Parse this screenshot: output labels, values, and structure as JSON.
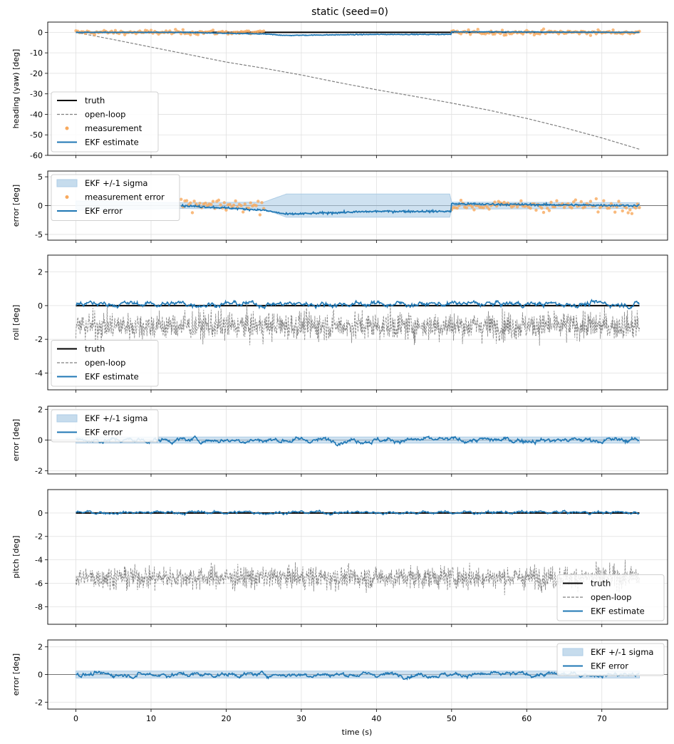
{
  "figure": {
    "title": "static (seed=0)",
    "xlabel": "time (s)"
  },
  "colors": {
    "truth": "#000000",
    "open_loop": "#808080",
    "measurement": "#f8a95d",
    "ekf": "#1f77b4",
    "sigma_fill": "#aecde6",
    "grid": "#e0e0e0"
  },
  "chart_data": [
    {
      "type": "line",
      "ylabel": "heading (yaw) [deg]",
      "xlim": [
        -3.75,
        78.75
      ],
      "ylim": [
        -60,
        5
      ],
      "yticks": [
        0,
        -10,
        -20,
        -30,
        -40,
        -50,
        -60
      ],
      "xticks": [
        0,
        10,
        20,
        30,
        40,
        50,
        60,
        70
      ],
      "grid": true,
      "legend": {
        "position": "lower-left",
        "entries": [
          "truth",
          "open-loop",
          "measurement",
          "EKF estimate"
        ]
      },
      "series": [
        {
          "name": "truth",
          "style": "solid-black",
          "x": [
            0,
            75
          ],
          "y": [
            0,
            0
          ]
        },
        {
          "name": "open-loop",
          "style": "dashed-gray",
          "x": [
            0,
            5,
            10,
            15,
            20,
            25,
            30,
            35,
            40,
            45,
            50,
            55,
            60,
            65,
            70,
            75
          ],
          "y": [
            0,
            -3.5,
            -7.2,
            -10.8,
            -14.5,
            -17.5,
            -20.8,
            -24.5,
            -28,
            -31.2,
            -34.5,
            -38,
            -42,
            -46.5,
            -51.5,
            -57
          ]
        },
        {
          "name": "measurement",
          "style": "scatter-orange",
          "x_range": [
            0,
            75
          ],
          "gaps": [
            [
              25,
              50
            ]
          ],
          "spread": 1.5,
          "center": 0
        },
        {
          "name": "EKF estimate",
          "style": "solid-blue",
          "x": [
            0,
            14,
            20,
            25,
            28,
            35,
            40,
            49.9,
            50,
            75
          ],
          "y": [
            0,
            0,
            -0.5,
            -0.8,
            -1.5,
            -1.2,
            -1.0,
            -1.0,
            0.3,
            0
          ]
        }
      ]
    },
    {
      "type": "line",
      "ylabel": "error [deg]",
      "xlim": [
        -3.75,
        78.75
      ],
      "ylim": [
        -6,
        6
      ],
      "yticks": [
        5,
        0,
        -5
      ],
      "xticks": [
        0,
        10,
        20,
        30,
        40,
        50,
        60,
        70
      ],
      "grid": true,
      "legend": {
        "position": "upper-left",
        "entries": [
          "EKF +/-1 sigma",
          "measurement error",
          "EKF error"
        ]
      },
      "series": [
        {
          "name": "EKF +/-1 sigma",
          "style": "band",
          "x": [
            0,
            14,
            25,
            28,
            49.9,
            50,
            75
          ],
          "y": [
            0.8,
            0.5,
            0.6,
            2.0,
            2.0,
            0.6,
            0.5
          ]
        },
        {
          "name": "measurement error",
          "style": "scatter-orange",
          "x_range": [
            14,
            75
          ],
          "gaps": [
            [
              25,
              50
            ]
          ],
          "spread": 1.3,
          "center": 0
        },
        {
          "name": "EKF error",
          "style": "solid-blue",
          "x": [
            14,
            20,
            25,
            28,
            35,
            40,
            49.9,
            50,
            75
          ],
          "y": [
            0,
            -0.4,
            -0.8,
            -1.5,
            -1.2,
            -1.0,
            -1.0,
            0.3,
            0
          ]
        }
      ]
    },
    {
      "type": "line",
      "ylabel": "roll [deg]",
      "xlim": [
        -3.75,
        78.75
      ],
      "ylim": [
        -5,
        3
      ],
      "yticks": [
        2,
        0,
        -2,
        -4
      ],
      "xticks": [
        0,
        10,
        20,
        30,
        40,
        50,
        60,
        70
      ],
      "grid": true,
      "legend": {
        "position": "lower-left",
        "entries": [
          "truth",
          "open-loop",
          "EKF estimate"
        ]
      },
      "series": [
        {
          "name": "truth",
          "style": "solid-black",
          "x": [
            0,
            75
          ],
          "y": [
            0,
            0
          ]
        },
        {
          "name": "open-loop",
          "style": "noise-gray",
          "x_range": [
            0,
            75
          ],
          "center": -1.2,
          "spread": 1.3,
          "min": -4.6,
          "max": 2.6
        },
        {
          "name": "EKF estimate",
          "style": "noise-blue",
          "x_range": [
            0,
            75
          ],
          "center": 0.1,
          "spread": 0.3
        }
      ]
    },
    {
      "type": "line",
      "ylabel": "error [deg]",
      "xlim": [
        -3.75,
        78.75
      ],
      "ylim": [
        -2.2,
        2.2
      ],
      "yticks": [
        2,
        0,
        -2
      ],
      "xticks": [
        0,
        10,
        20,
        30,
        40,
        50,
        60,
        70
      ],
      "grid": true,
      "legend": {
        "position": "upper-left",
        "entries": [
          "EKF +/-1 sigma",
          "EKF error"
        ]
      },
      "series": [
        {
          "name": "EKF +/-1 sigma",
          "style": "band",
          "x": [
            0,
            75
          ],
          "y": [
            0.2,
            0.2
          ]
        },
        {
          "name": "EKF error",
          "style": "noise-blue",
          "x_range": [
            0,
            75
          ],
          "center": 0,
          "spread": 0.3
        }
      ]
    },
    {
      "type": "line",
      "ylabel": "pitch [deg]",
      "xlim": [
        -3.75,
        78.75
      ],
      "ylim": [
        -9.5,
        2
      ],
      "yticks": [
        0,
        -2,
        -4,
        -6,
        -8
      ],
      "xticks": [
        0,
        10,
        20,
        30,
        40,
        50,
        60,
        70
      ],
      "grid": true,
      "legend": {
        "position": "lower-right",
        "entries": [
          "truth",
          "open-loop",
          "EKF estimate"
        ]
      },
      "series": [
        {
          "name": "truth",
          "style": "solid-black",
          "x": [
            0,
            75
          ],
          "y": [
            0,
            0
          ]
        },
        {
          "name": "open-loop",
          "style": "noise-gray",
          "x_range": [
            0,
            75
          ],
          "center": -5.5,
          "spread": 1.5,
          "min": -9,
          "max": -2
        },
        {
          "name": "EKF estimate",
          "style": "noise-blue",
          "x_range": [
            0,
            75
          ],
          "center": 0.05,
          "spread": 0.25
        }
      ]
    },
    {
      "type": "line",
      "ylabel": "error [deg]",
      "xlim": [
        -3.75,
        78.75
      ],
      "ylim": [
        -2.5,
        2.5
      ],
      "yticks": [
        2,
        0,
        -2
      ],
      "xticks": [
        0,
        10,
        20,
        30,
        40,
        50,
        60,
        70
      ],
      "xticklabels": [
        "0",
        "10",
        "20",
        "30",
        "40",
        "50",
        "60",
        "70"
      ],
      "grid": true,
      "legend": {
        "position": "upper-right",
        "entries": [
          "EKF +/-1 sigma",
          "EKF error"
        ]
      },
      "series": [
        {
          "name": "EKF +/-1 sigma",
          "style": "band",
          "x": [
            0,
            75
          ],
          "y": [
            0.25,
            0.25
          ]
        },
        {
          "name": "EKF error",
          "style": "noise-blue",
          "x_range": [
            0,
            75
          ],
          "center": 0,
          "spread": 0.3
        }
      ]
    }
  ]
}
